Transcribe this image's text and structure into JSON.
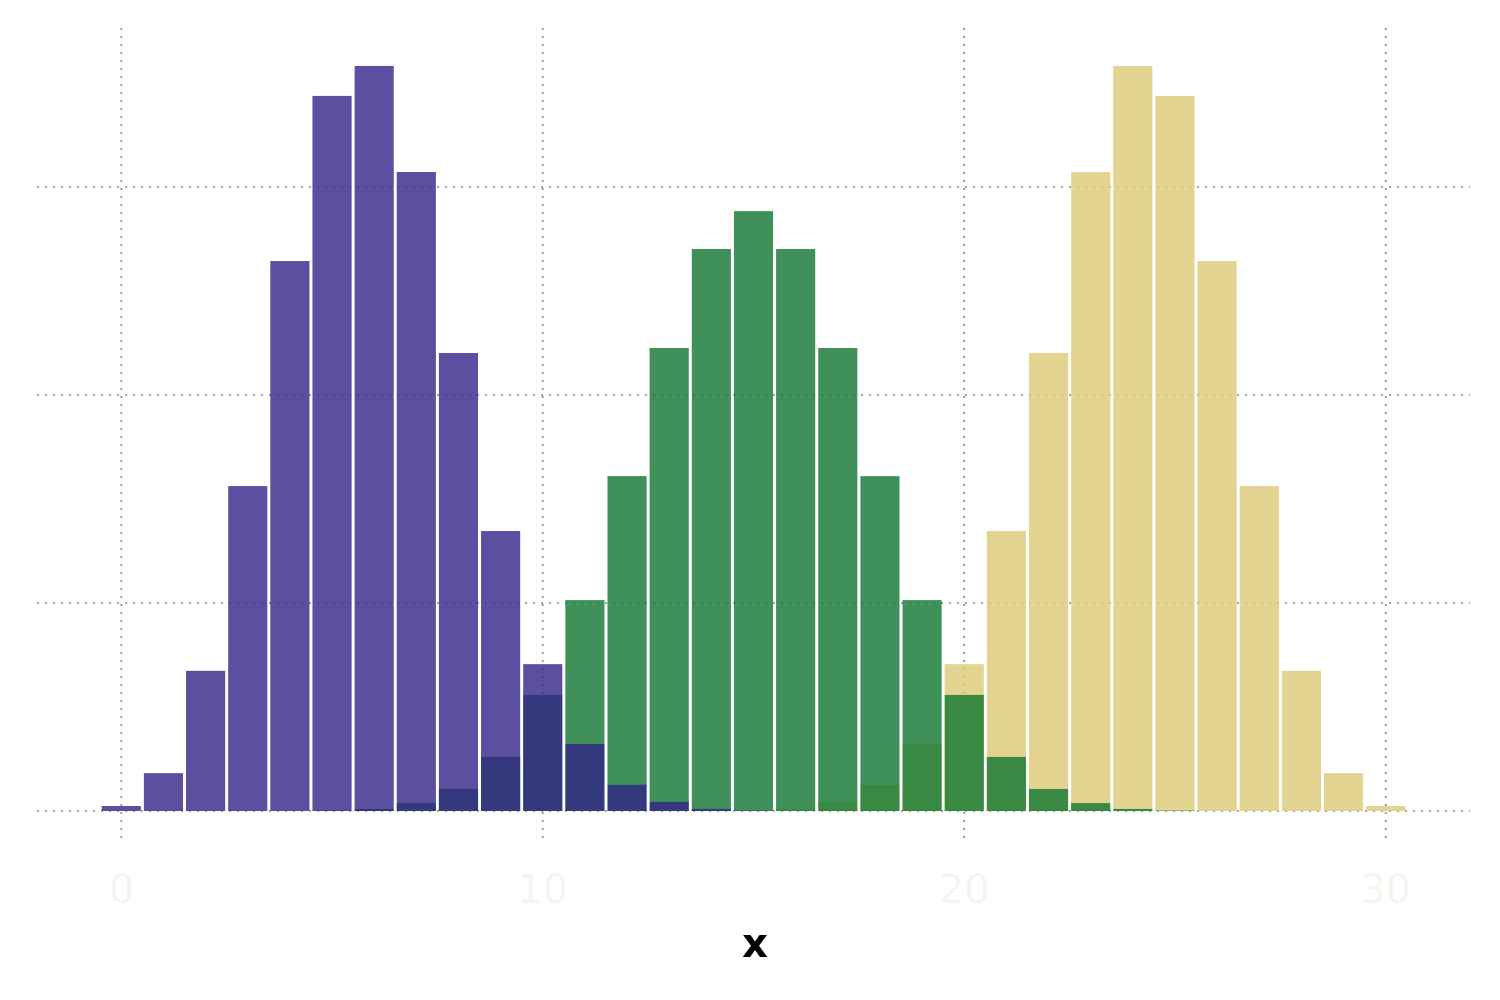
{
  "chart_data": {
    "type": "histogram",
    "xlabel": "x",
    "bins": [
      -0.5,
      0.5,
      1.5,
      2.5,
      3.5,
      4.5,
      5.5,
      6.5,
      7.5,
      8.5,
      9.5,
      10.5,
      11.5,
      12.5,
      13.5,
      14.5,
      15.5,
      16.5,
      17.5,
      18.5,
      19.5,
      20.5,
      21.5,
      22.5,
      23.5,
      24.5,
      25.5,
      26.5,
      27.5,
      28.5,
      29.5,
      30.5
    ],
    "series": [
      {
        "color": "#322387",
        "alpha": 0.8,
        "values": [
          0.0012,
          0.0091,
          0.0337,
          0.0781,
          0.1322,
          0.1719,
          0.1791,
          0.1536,
          0.1101,
          0.0673,
          0.0353,
          0.0161,
          0.0063,
          0.0022,
          0.0005,
          0.0001,
          0,
          0,
          0,
          0,
          0,
          0,
          0,
          0,
          0,
          0,
          0,
          0,
          0,
          0,
          0
        ]
      },
      {
        "color": "#0f7630",
        "alpha": 0.8,
        "values": [
          0,
          0,
          0,
          0,
          0,
          0.0001,
          0.0005,
          0.0019,
          0.0053,
          0.013,
          0.0279,
          0.0507,
          0.0805,
          0.1113,
          0.1351,
          0.1442,
          0.1351,
          0.1113,
          0.0805,
          0.0507,
          0.0279,
          0.013,
          0.0053,
          0.0019,
          0.0005,
          0.0001,
          0,
          0,
          0,
          0,
          0
        ]
      },
      {
        "color": "#dcc976",
        "alpha": 0.8,
        "values": [
          0,
          0,
          0,
          0,
          0,
          0,
          0,
          0,
          0,
          0,
          0,
          0,
          0,
          0,
          0,
          0.0001,
          0.0005,
          0.0022,
          0.0063,
          0.0161,
          0.0353,
          0.0673,
          0.1101,
          0.1536,
          0.1791,
          0.1719,
          0.1322,
          0.0781,
          0.0337,
          0.0091,
          0.0012
        ]
      }
    ],
    "xlim": [
      -2,
      32
    ],
    "xticks": [
      0,
      10,
      20,
      30
    ],
    "ylim": [
      0,
      0.19
    ],
    "yticks": [
      0,
      0.05,
      0.1,
      0.15
    ],
    "grid": true
  }
}
